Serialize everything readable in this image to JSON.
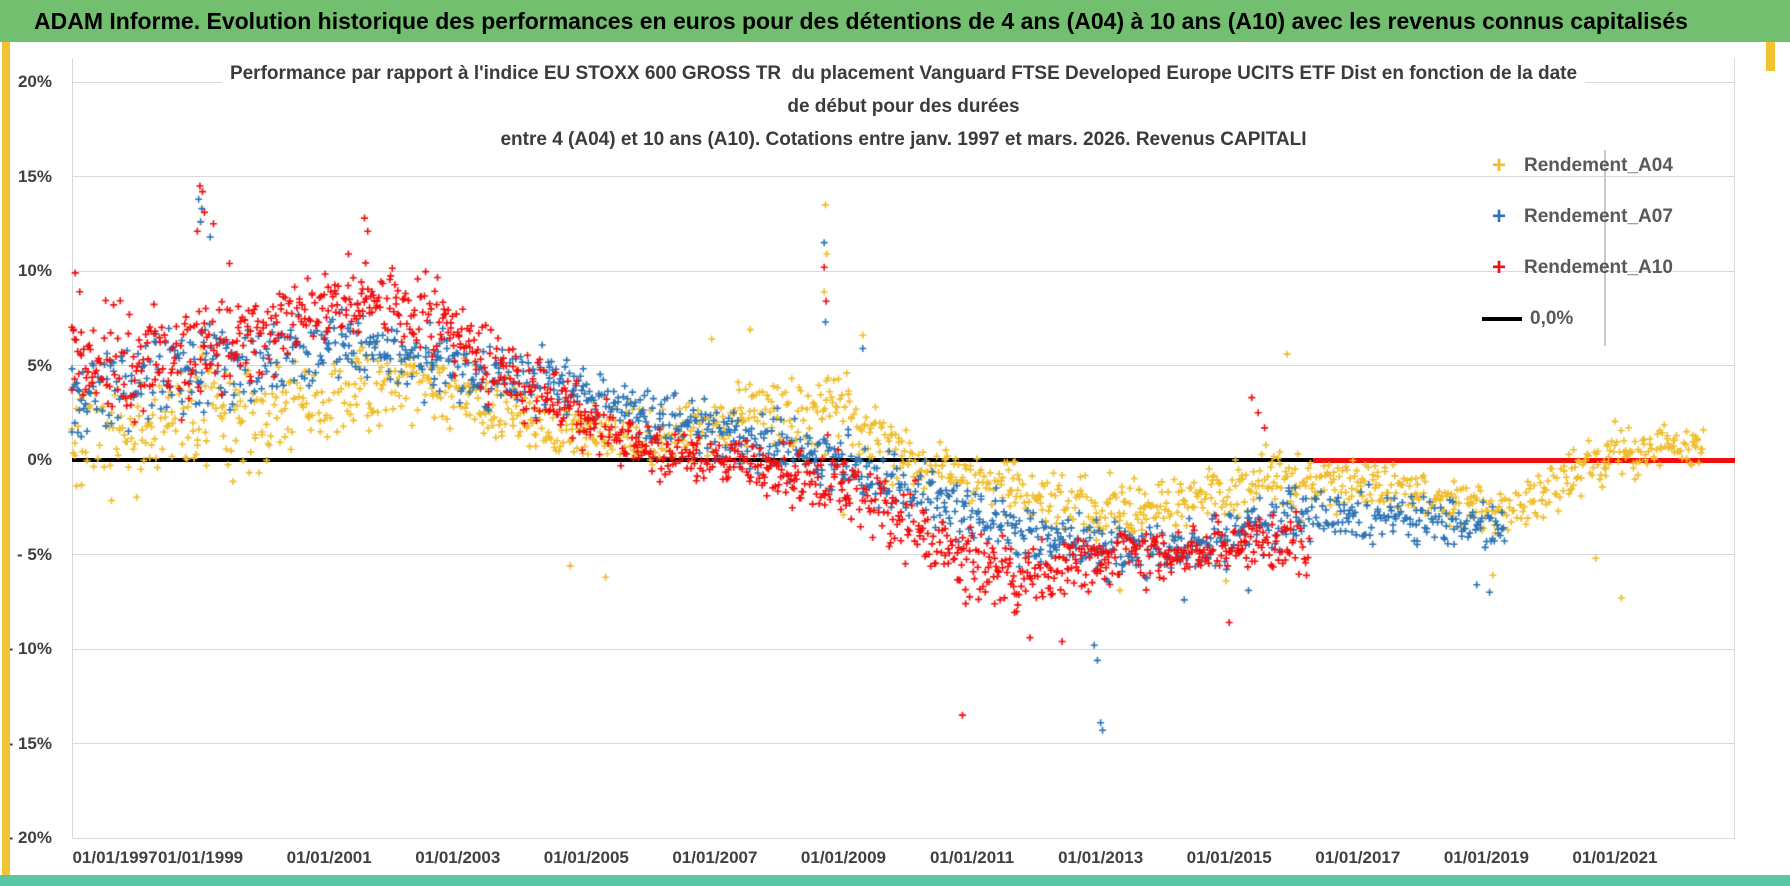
{
  "header": {
    "title": "ADAM Informe. Evolution historique des performances en euros pour des détentions de 4 ans (A04) à 10 ans (A10) avec les revenus connus capitalisés",
    "bg_color": "#72BF6F"
  },
  "frame": {
    "left_strip_color": "#F1C232",
    "right_strip_color": "#F1C232",
    "bottom_bar_color": "#5BC6A4"
  },
  "chart_data": {
    "type": "scatter",
    "title_lines": [
      "Performance par rapport à l'indice EU STOXX 600 GROSS TR  du placement Vanguard FTSE Developed Europe UCITS ETF Dist en fonction de la date",
      "de début pour des durées",
      "entre 4 (A04) et 10 ans (A10). Cotations entre janv. 1997 et mars. 2026. Revenus CAPITALI"
    ],
    "x_axis": {
      "min_year": 1997,
      "max_year": 2022.9,
      "tick_years": [
        1997,
        1999,
        2001,
        2003,
        2005,
        2007,
        2009,
        2011,
        2013,
        2015,
        2017,
        2019,
        2021
      ],
      "tick_labels": [
        "01/01/1997",
        "01/01/1999",
        "01/01/2001",
        "01/01/2003",
        "01/01/2005",
        "01/01/2007",
        "01/01/2009",
        "01/01/2011",
        "01/01/2013",
        "01/01/2015",
        "01/01/2017",
        "01/01/2019",
        "01/01/2021"
      ]
    },
    "y_axis": {
      "min": -20,
      "max": 20,
      "tick_values": [
        20,
        15,
        10,
        5,
        0,
        -5,
        -10,
        -15,
        -20
      ],
      "tick_labels": [
        "20%",
        "15%",
        "10%",
        "5%",
        "0%",
        "- 5%",
        "- 10%",
        "- 15%",
        "- 20%"
      ],
      "unit": "%"
    },
    "zero_line": {
      "value": 0,
      "color": "#000000",
      "label": "0,0%"
    },
    "legend": [
      {
        "label": "Rendement_A04",
        "marker": "plus",
        "color": "#EFBD2B"
      },
      {
        "label": "Rendement_A07",
        "marker": "plus",
        "color": "#2D74B5"
      },
      {
        "label": "Rendement_A10",
        "marker": "plus",
        "color": "#F20D0D"
      },
      {
        "label": "0,0%",
        "marker": "line",
        "color": "#000000"
      }
    ],
    "series": [
      {
        "name": "Rendement_A04",
        "color": "#EFBD2B",
        "marker": "plus",
        "points_per_year": 42,
        "trend": [
          [
            1997.0,
            1.0,
            3.0
          ],
          [
            1997.5,
            1.6,
            3.0
          ],
          [
            1998.0,
            0.6,
            3.0
          ],
          [
            1998.5,
            2.0,
            3.0
          ],
          [
            1999.0,
            2.4,
            3.4
          ],
          [
            1999.6,
            1.8,
            3.0
          ],
          [
            2000.2,
            2.6,
            2.8
          ],
          [
            2001.0,
            3.2,
            2.6
          ],
          [
            2001.6,
            4.2,
            2.5
          ],
          [
            2002.2,
            4.4,
            2.3
          ],
          [
            2002.8,
            3.8,
            2.2
          ],
          [
            2003.5,
            2.8,
            2.0
          ],
          [
            2004.3,
            2.0,
            1.8
          ],
          [
            2005.0,
            1.2,
            1.7
          ],
          [
            2006.0,
            1.2,
            1.6
          ],
          [
            2007.0,
            2.0,
            1.9
          ],
          [
            2007.6,
            2.7,
            2.2
          ],
          [
            2008.2,
            2.2,
            2.1
          ],
          [
            2008.8,
            3.0,
            2.6
          ],
          [
            2009.2,
            1.8,
            2.3
          ],
          [
            2009.8,
            0.6,
            1.9
          ],
          [
            2010.4,
            -0.5,
            1.6
          ],
          [
            2011.2,
            -1.1,
            1.5
          ],
          [
            2012.0,
            -1.8,
            1.5
          ],
          [
            2013.0,
            -2.7,
            1.7
          ],
          [
            2014.0,
            -2.4,
            1.6
          ],
          [
            2015.0,
            -1.4,
            1.8
          ],
          [
            2015.6,
            -0.7,
            1.8
          ],
          [
            2016.2,
            -1.3,
            1.5
          ],
          [
            2017.0,
            -1.2,
            1.4
          ],
          [
            2018.0,
            -1.9,
            1.5
          ],
          [
            2018.9,
            -2.8,
            1.6
          ],
          [
            2019.5,
            -2.3,
            1.5
          ],
          [
            2020.2,
            -0.9,
            1.6
          ],
          [
            2021.0,
            0.3,
            1.5
          ],
          [
            2021.8,
            0.7,
            1.3
          ],
          [
            2022.4,
            0.8,
            1.1
          ]
        ],
        "outliers": [
          [
            2008.72,
            13.5
          ],
          [
            2008.74,
            10.9
          ],
          [
            2008.7,
            8.9
          ],
          [
            2015.9,
            5.6
          ],
          [
            2007.55,
            6.9
          ],
          [
            2006.95,
            6.4
          ],
          [
            2004.75,
            -5.6
          ],
          [
            2005.3,
            -6.2
          ],
          [
            2013.3,
            -6.9
          ],
          [
            2014.95,
            -6.4
          ],
          [
            2019.1,
            -6.1
          ],
          [
            2020.7,
            -5.2
          ],
          [
            2021.1,
            -7.3
          ],
          [
            2009.3,
            6.6
          ],
          [
            2009.0,
            -2.9
          ]
        ]
      },
      {
        "name": "Rendement_A07",
        "color": "#2D74B5",
        "marker": "plus",
        "points_per_year": 42,
        "trend": [
          [
            1997.0,
            3.5,
            2.2
          ],
          [
            1997.6,
            4.0,
            2.4
          ],
          [
            1998.3,
            4.6,
            2.7
          ],
          [
            1999.0,
            5.0,
            3.0
          ],
          [
            1999.6,
            4.6,
            2.5
          ],
          [
            2000.3,
            5.7,
            2.2
          ],
          [
            2001.0,
            6.2,
            2.0
          ],
          [
            2002.0,
            5.6,
            2.0
          ],
          [
            2003.0,
            4.8,
            1.9
          ],
          [
            2004.0,
            4.2,
            1.7
          ],
          [
            2005.0,
            3.6,
            1.6
          ],
          [
            2006.0,
            2.6,
            1.6
          ],
          [
            2007.0,
            1.6,
            1.6
          ],
          [
            2008.0,
            0.7,
            1.8
          ],
          [
            2008.9,
            0.1,
            2.0
          ],
          [
            2009.6,
            -0.9,
            1.7
          ],
          [
            2010.4,
            -1.9,
            1.7
          ],
          [
            2011.2,
            -3.0,
            1.7
          ],
          [
            2012.0,
            -3.9,
            1.7
          ],
          [
            2013.0,
            -4.6,
            1.6
          ],
          [
            2014.0,
            -4.7,
            1.5
          ],
          [
            2015.0,
            -4.0,
            1.7
          ],
          [
            2015.8,
            -3.2,
            1.6
          ],
          [
            2016.6,
            -2.8,
            1.5
          ],
          [
            2017.4,
            -3.0,
            1.4
          ],
          [
            2018.2,
            -3.3,
            1.4
          ],
          [
            2019.3,
            -3.9,
            1.5
          ]
        ],
        "outliers": [
          [
            1998.97,
            13.8
          ],
          [
            1999.02,
            13.3
          ],
          [
            1999.0,
            12.6
          ],
          [
            1999.15,
            11.8
          ],
          [
            2008.7,
            11.5
          ],
          [
            2008.72,
            7.3
          ],
          [
            2012.95,
            -10.6
          ],
          [
            2013.0,
            -13.9
          ],
          [
            2013.03,
            -14.3
          ],
          [
            2012.9,
            -9.8
          ],
          [
            2014.3,
            -7.4
          ],
          [
            2015.3,
            -6.9
          ],
          [
            2018.85,
            -6.6
          ],
          [
            2019.05,
            -7.0
          ],
          [
            2009.3,
            5.9
          ]
        ]
      },
      {
        "name": "Rendement_A10",
        "color": "#F20D0D",
        "marker": "plus",
        "points_per_year": 48,
        "trend": [
          [
            1997.0,
            5.5,
            2.8
          ],
          [
            1997.7,
            5.2,
            3.0
          ],
          [
            1998.4,
            5.4,
            3.0
          ],
          [
            1999.1,
            6.0,
            3.0
          ],
          [
            1999.8,
            6.6,
            2.6
          ],
          [
            2000.5,
            7.8,
            2.2
          ],
          [
            2001.2,
            8.3,
            2.1
          ],
          [
            2001.9,
            8.5,
            2.1
          ],
          [
            2002.6,
            7.4,
            2.1
          ],
          [
            2003.3,
            5.8,
            2.0
          ],
          [
            2004.0,
            4.0,
            1.9
          ],
          [
            2004.7,
            2.8,
            1.7
          ],
          [
            2005.4,
            1.4,
            1.6
          ],
          [
            2006.1,
            0.5,
            1.5
          ],
          [
            2007.0,
            0.0,
            1.4
          ],
          [
            2008.0,
            -0.5,
            1.7
          ],
          [
            2008.9,
            -1.1,
            2.0
          ],
          [
            2009.6,
            -2.4,
            2.0
          ],
          [
            2010.3,
            -3.9,
            2.0
          ],
          [
            2011.0,
            -5.3,
            2.0
          ],
          [
            2011.7,
            -6.2,
            2.0
          ],
          [
            2012.4,
            -5.7,
            1.9
          ],
          [
            2013.1,
            -5.2,
            1.6
          ],
          [
            2013.9,
            -4.9,
            1.5
          ],
          [
            2014.7,
            -4.6,
            1.6
          ],
          [
            2015.4,
            -4.1,
            1.8
          ],
          [
            2016.25,
            -4.7,
            1.6
          ]
        ],
        "outliers": [
          [
            1998.99,
            14.5
          ],
          [
            1999.03,
            14.2
          ],
          [
            1999.06,
            13.1
          ],
          [
            1998.95,
            12.1
          ],
          [
            1999.2,
            12.5
          ],
          [
            1999.45,
            10.4
          ],
          [
            2001.55,
            12.8
          ],
          [
            2001.6,
            12.1
          ],
          [
            2001.3,
            10.9
          ],
          [
            1997.05,
            9.9
          ],
          [
            1997.12,
            8.9
          ],
          [
            2008.7,
            10.2
          ],
          [
            2008.73,
            8.4
          ],
          [
            2010.85,
            -13.5
          ],
          [
            2012.4,
            -9.6
          ],
          [
            2011.9,
            -9.4
          ],
          [
            2015.0,
            -8.6
          ],
          [
            2010.9,
            -7.6
          ],
          [
            2015.35,
            3.3
          ],
          [
            2015.45,
            2.5
          ],
          [
            2015.55,
            1.7
          ]
        ],
        "zero_segment": {
          "from_year": 2016.3,
          "to_year": 2022.87,
          "value": 0
        }
      }
    ]
  }
}
